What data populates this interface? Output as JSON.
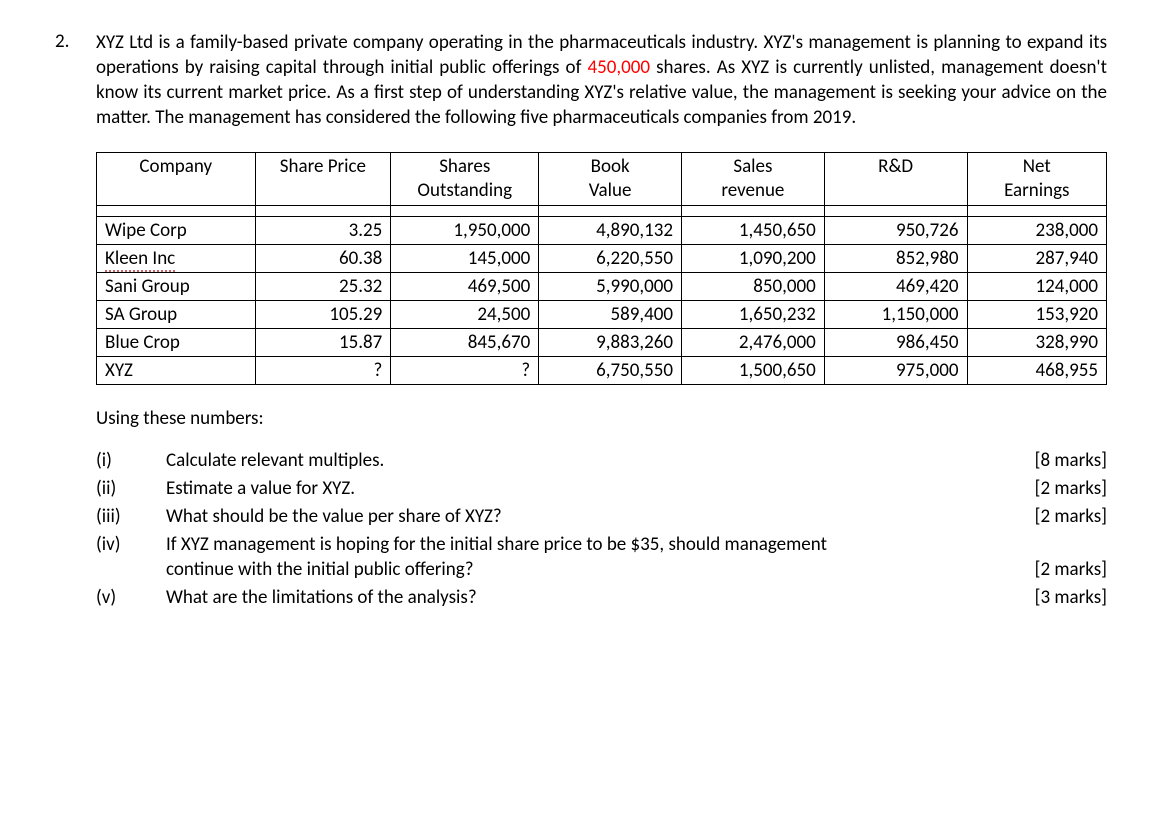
{
  "question_number": "2.",
  "paragraph_parts": {
    "p1": "XYZ Ltd is a family-based private company operating in the pharmaceuticals industry. XYZ's management is planning to expand its operations by raising capital through initial public offerings of ",
    "highlight": "450,000",
    "p2": " shares. As XYZ is currently unlisted, management doesn't know its current market price. As a first step of understanding XYZ's relative value, the management is seeking your advice on the matter. The management has considered the following five pharmaceuticals companies from 2019."
  },
  "table": {
    "headers": {
      "company": "Company",
      "share_price": "Share Price",
      "shares_out_l1": "Shares",
      "shares_out_l2": "Outstanding",
      "book_l1": "Book",
      "book_l2": "Value",
      "sales_l1": "Sales",
      "sales_l2": "revenue",
      "rd": "R&D",
      "net_l1": "Net",
      "net_l2": "Earnings"
    },
    "rows": [
      {
        "company": "Wipe Corp",
        "sp": "3.25",
        "so": "1,950,000",
        "bv": "4,890,132",
        "sr": "1,450,650",
        "rd": "950,726",
        "ne": "238,000",
        "underline": false
      },
      {
        "company": "Kleen Inc",
        "sp": "60.38",
        "so": "145,000",
        "bv": "6,220,550",
        "sr": "1,090,200",
        "rd": "852,980",
        "ne": "287,940",
        "underline": true
      },
      {
        "company": "Sani Group",
        "sp": "25.32",
        "so": "469,500",
        "bv": "5,990,000",
        "sr": "850,000",
        "rd": "469,420",
        "ne": "124,000",
        "underline": false
      },
      {
        "company": "SA Group",
        "sp": "105.29",
        "so": "24,500",
        "bv": "589,400",
        "sr": "1,650,232",
        "rd": "1,150,000",
        "ne": "153,920",
        "underline": false
      },
      {
        "company": "Blue Crop",
        "sp": "15.87",
        "so": "845,670",
        "bv": "9,883,260",
        "sr": "2,476,000",
        "rd": "986,450",
        "ne": "328,990",
        "underline": false
      },
      {
        "company": "XYZ",
        "sp": "?",
        "so": "?",
        "bv": "6,750,550",
        "sr": "1,500,650",
        "rd": "975,000",
        "ne": "468,955",
        "underline": false
      }
    ]
  },
  "using_label": "Using these numbers:",
  "subs": {
    "i": {
      "label": "(i)",
      "text": "Calculate relevant multiples.",
      "mark": "[8 marks]"
    },
    "ii": {
      "label": "(ii)",
      "text": "Estimate a value for XYZ.",
      "mark": "[2 marks]"
    },
    "iii": {
      "label": "(iii)",
      "text": "What should be the value per share of XYZ?",
      "mark": "[2 marks]"
    },
    "iv": {
      "label": "(iv)",
      "line1": "If XYZ management is hoping for the initial share price to be $35, should management",
      "line2": "continue with the initial public offering?",
      "mark": "[2 marks]"
    },
    "v": {
      "label": "(v)",
      "text": "What are the limitations of the analysis?",
      "mark": "[3 marks]"
    }
  }
}
